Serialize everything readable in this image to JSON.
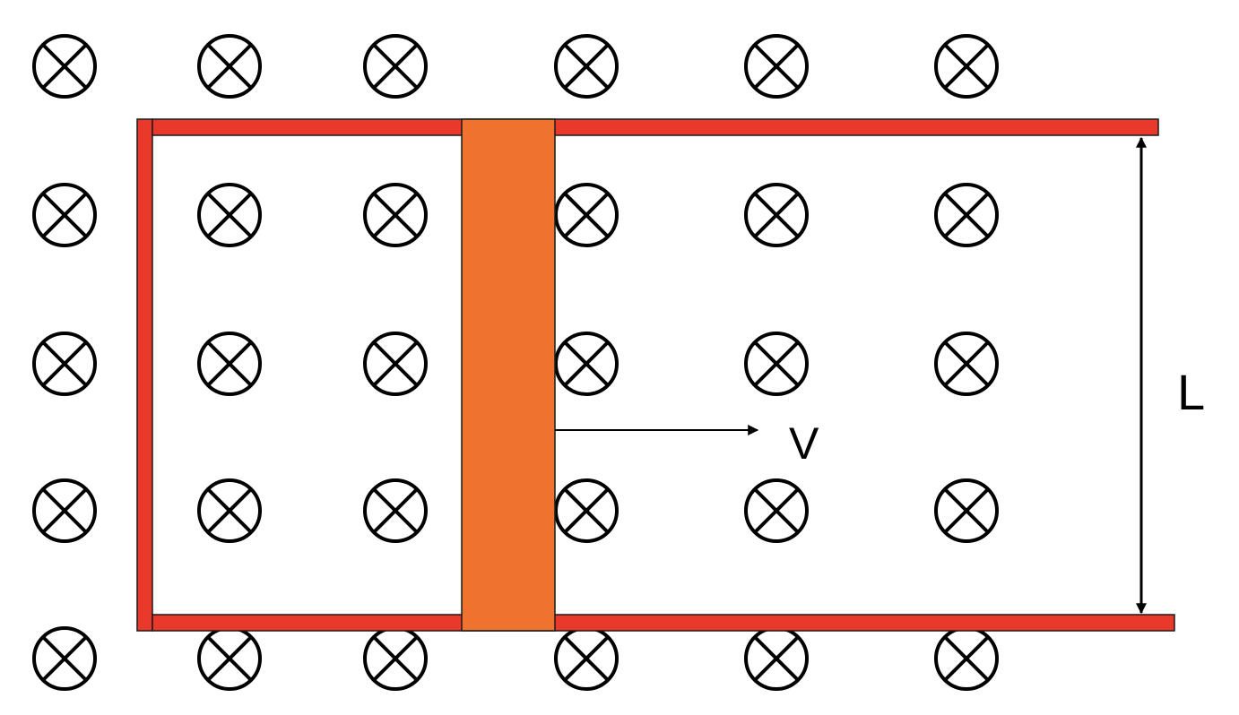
{
  "diagram": {
    "labels": {
      "velocity": "V",
      "length": "L"
    },
    "colors": {
      "rail": "#E8392A",
      "rail_stroke": "#1a1a1a",
      "bar": "#ED732E",
      "bar_stroke": "#1a1a1a",
      "field_symbol": "#000000",
      "arrow": "#000000"
    },
    "field_symbol": {
      "name": "magnetic-field-into-page-icon",
      "rows": 5,
      "columns": 6
    }
  }
}
